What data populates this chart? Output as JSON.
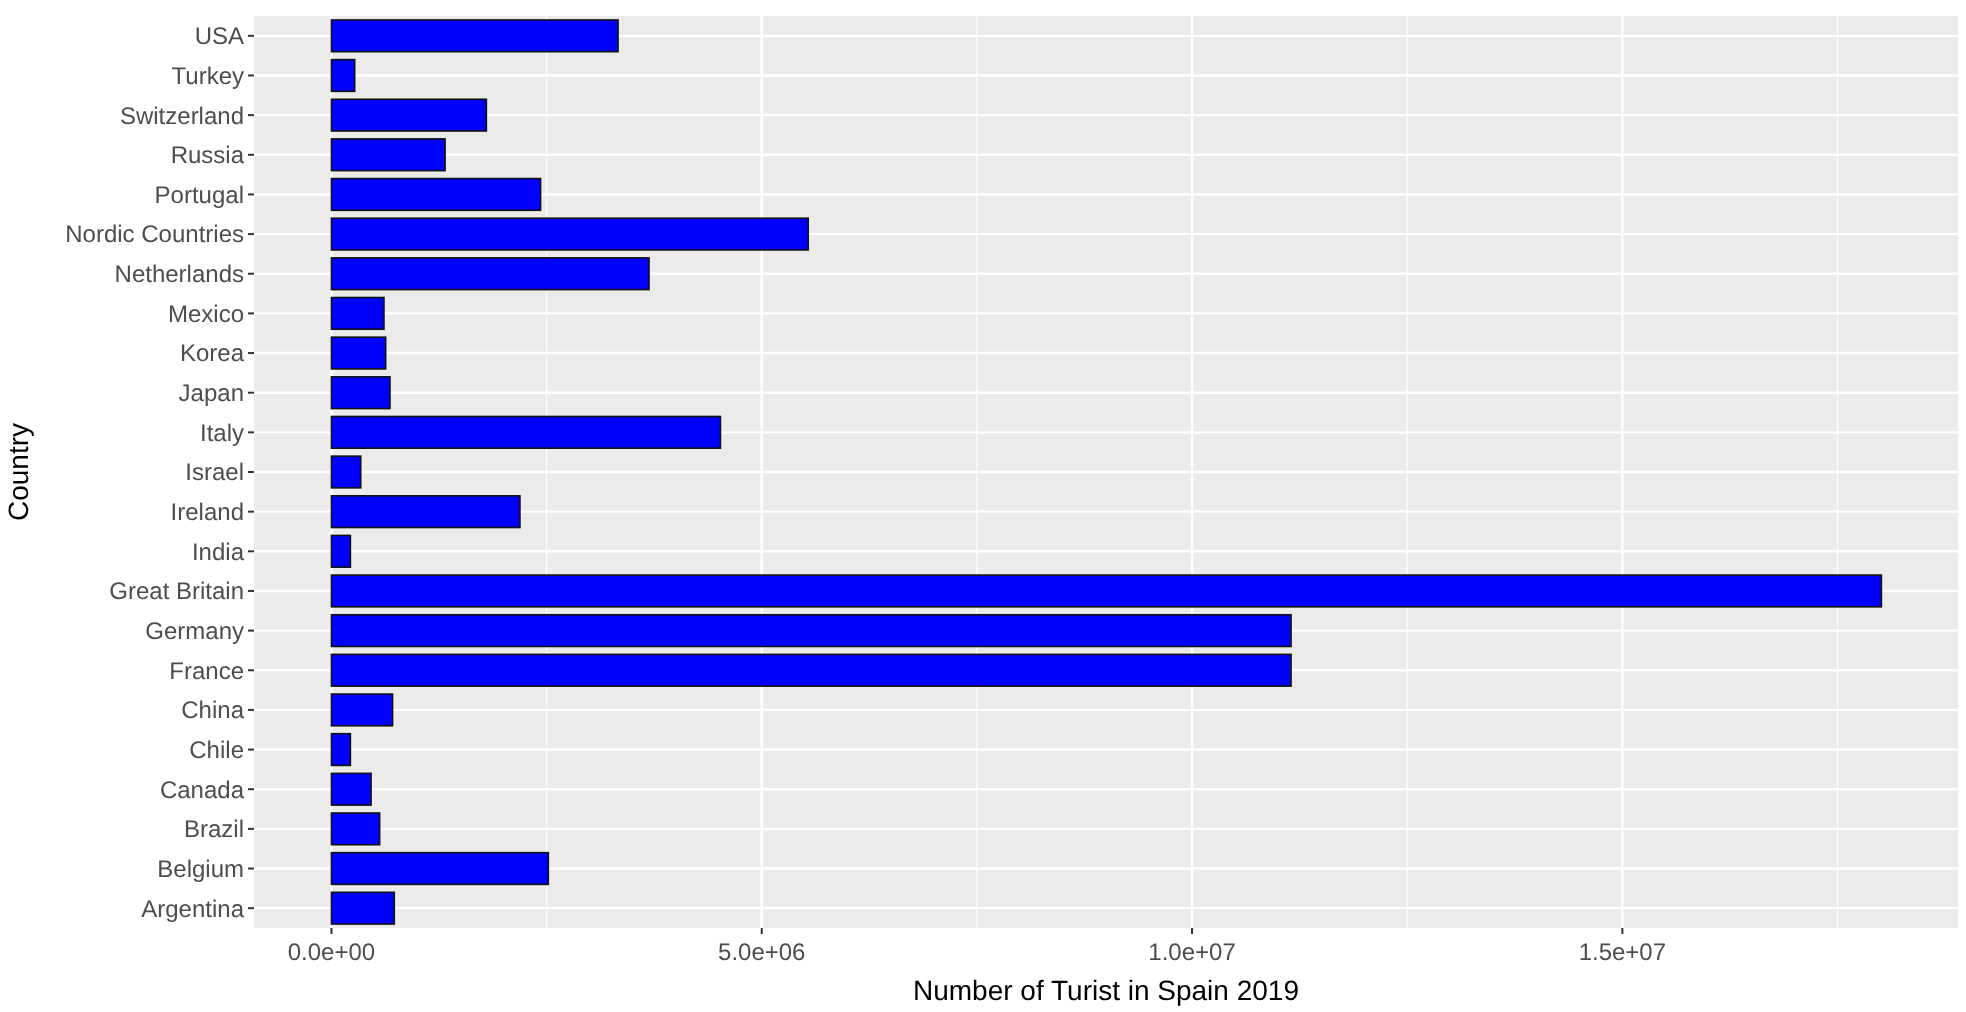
{
  "chart_data": {
    "type": "bar",
    "orientation": "horizontal",
    "xlabel": "Number of Turist in Spain 2019",
    "ylabel": "Country",
    "categories": [
      "USA",
      "Turkey",
      "Switzerland",
      "Russia",
      "Portugal",
      "Nordic Countries",
      "Netherlands",
      "Mexico",
      "Korea",
      "Japan",
      "Italy",
      "Israel",
      "Ireland",
      "India",
      "Great Britain",
      "Germany",
      "France",
      "China",
      "Chile",
      "Canada",
      "Brazil",
      "Belgium",
      "Argentina"
    ],
    "values": [
      3330000,
      270000,
      1800000,
      1320000,
      2430000,
      5540000,
      3690000,
      610000,
      630000,
      680000,
      4520000,
      340000,
      2190000,
      220000,
      18010000,
      11150000,
      11150000,
      710000,
      220000,
      460000,
      560000,
      2520000,
      730000
    ],
    "color": "#0000ff",
    "xlim": [
      -900000,
      18900000
    ],
    "xticks": [
      {
        "value": 0,
        "label": "0.0e+00"
      },
      {
        "value": 5000000,
        "label": "5.0e+06"
      },
      {
        "value": 10000000,
        "label": "1.0e+07"
      },
      {
        "value": 15000000,
        "label": "1.5e+07"
      }
    ],
    "grid": true
  }
}
